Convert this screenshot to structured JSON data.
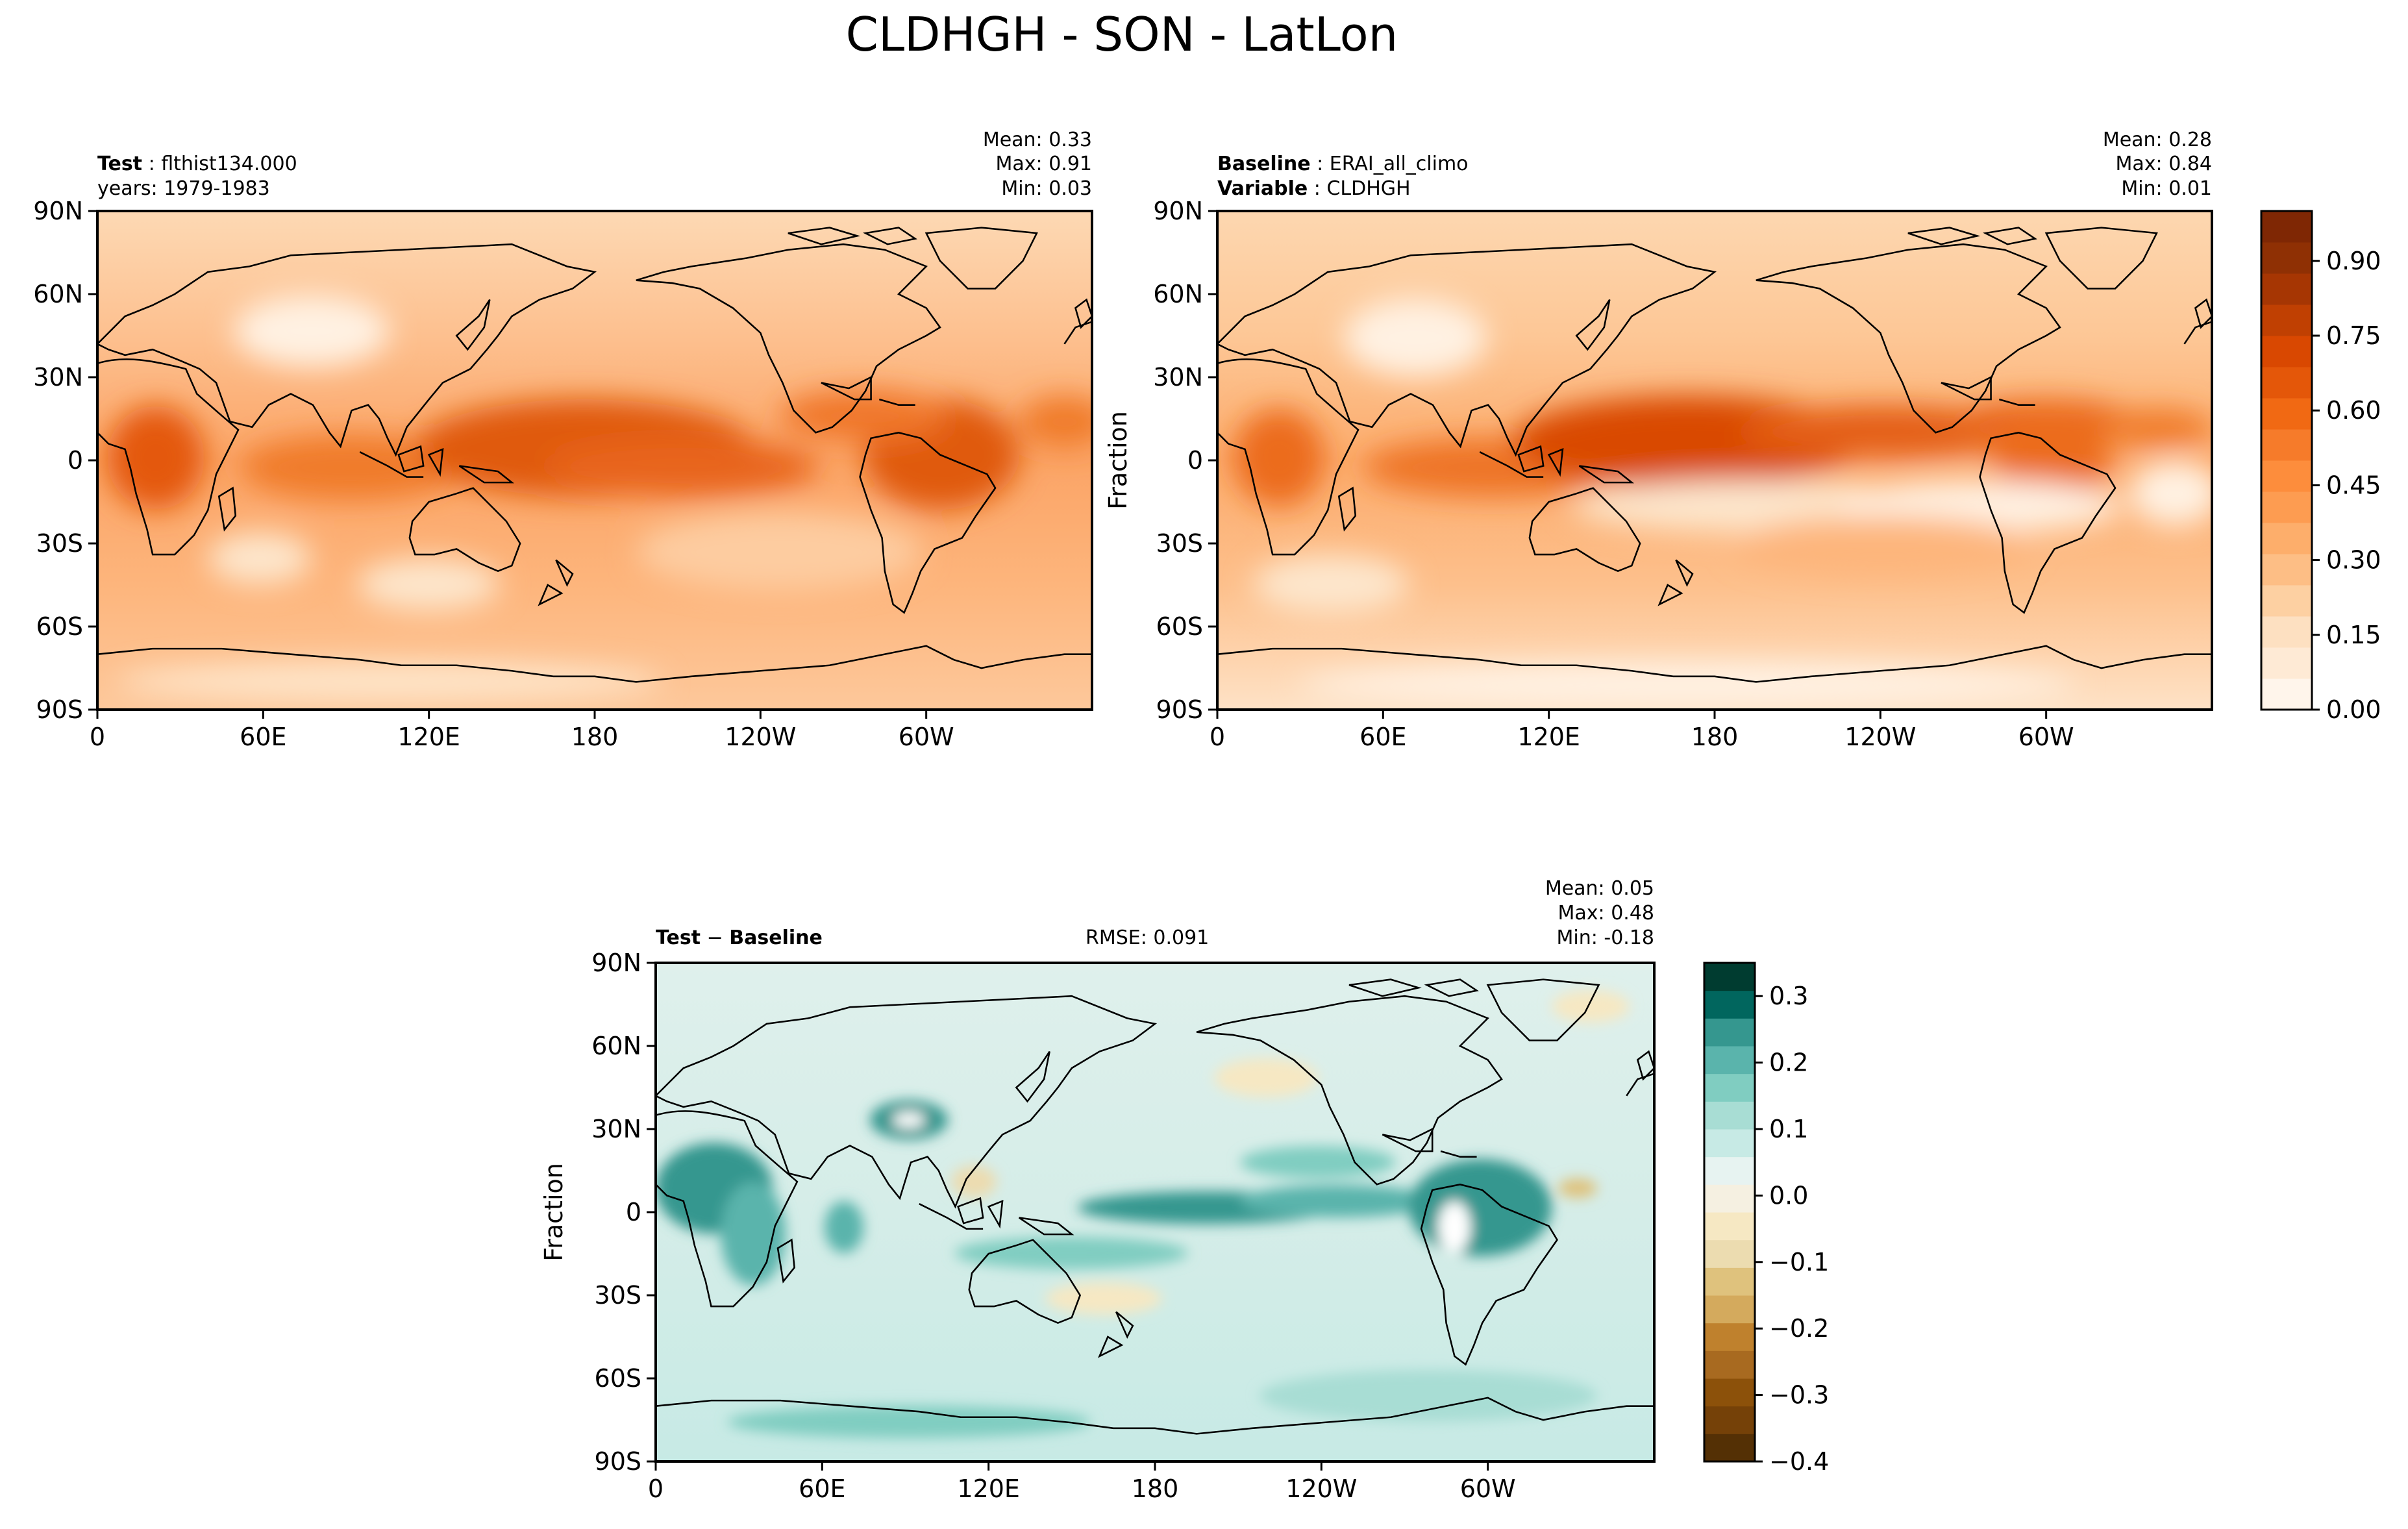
{
  "figure": {
    "title": "CLDHGH - SON - LatLon"
  },
  "chart_data": [
    {
      "type": "heatmap",
      "panel": "test",
      "label_bold": "Test",
      "label_value": "flthist134.000",
      "subtitle": "years: 1979-1983",
      "stats": {
        "mean": "0.33",
        "max": "0.91",
        "min": "0.03"
      },
      "x_ticks": [
        "0",
        "60E",
        "120E",
        "180",
        "120W",
        "60W"
      ],
      "y_ticks": [
        "90N",
        "60N",
        "30N",
        "0",
        "30S",
        "60S",
        "90S"
      ],
      "colormap": "Oranges"
    },
    {
      "type": "heatmap",
      "panel": "baseline",
      "label_bold": "Baseline",
      "label_value": "ERAI_all_climo",
      "variable_bold": "Variable",
      "variable_value": "CLDHGH",
      "ylabel": "Fraction",
      "stats": {
        "mean": "0.28",
        "max": "0.84",
        "min": "0.01"
      },
      "x_ticks": [
        "0",
        "60E",
        "120E",
        "180",
        "120W",
        "60W"
      ],
      "y_ticks": [
        "90N",
        "60N",
        "30N",
        "0",
        "30S",
        "60S",
        "90S"
      ],
      "colorbar": {
        "ticks": [
          "0.00",
          "0.15",
          "0.30",
          "0.45",
          "0.60",
          "0.75",
          "0.90"
        ],
        "range": [
          0.0,
          1.0
        ],
        "colors": [
          "#fff5eb",
          "#feead5",
          "#fde0c1",
          "#fdd0a2",
          "#fdbe85",
          "#fdae6b",
          "#fd9c51",
          "#fd8d3c",
          "#f67b2a",
          "#f16913",
          "#e45709",
          "#d94801",
          "#c04002",
          "#a63603",
          "#8f3004",
          "#7f2704"
        ]
      },
      "colormap": "Oranges"
    },
    {
      "type": "heatmap",
      "panel": "difference",
      "label_bold_1": "Test",
      "label_sep": "−",
      "label_bold_2": "Baseline",
      "rmse": "RMSE: 0.091",
      "ylabel": "Fraction",
      "stats": {
        "mean": "0.05",
        "max": "0.48",
        "min": "-0.18"
      },
      "x_ticks": [
        "0",
        "60E",
        "120E",
        "180",
        "120W",
        "60W"
      ],
      "y_ticks": [
        "90N",
        "60N",
        "30N",
        "0",
        "30S",
        "60S",
        "90S"
      ],
      "colorbar": {
        "ticks": [
          "0.3",
          "0.2",
          "0.1",
          "0.0",
          "−0.1",
          "−0.2",
          "−0.3",
          "−0.4"
        ],
        "range": [
          -0.4,
          0.35
        ],
        "colors": [
          "#543005",
          "#754108",
          "#8c510a",
          "#a86a20",
          "#bf812d",
          "#d4aa5d",
          "#dfc27d",
          "#ecdcb0",
          "#f6e8c3",
          "#f5f0e1",
          "#e7f3f1",
          "#c7eae5",
          "#a8ddd4",
          "#80cdc1",
          "#5ab4ac",
          "#35978f",
          "#01665e",
          "#003c30"
        ]
      },
      "colormap": "BrBG"
    }
  ]
}
